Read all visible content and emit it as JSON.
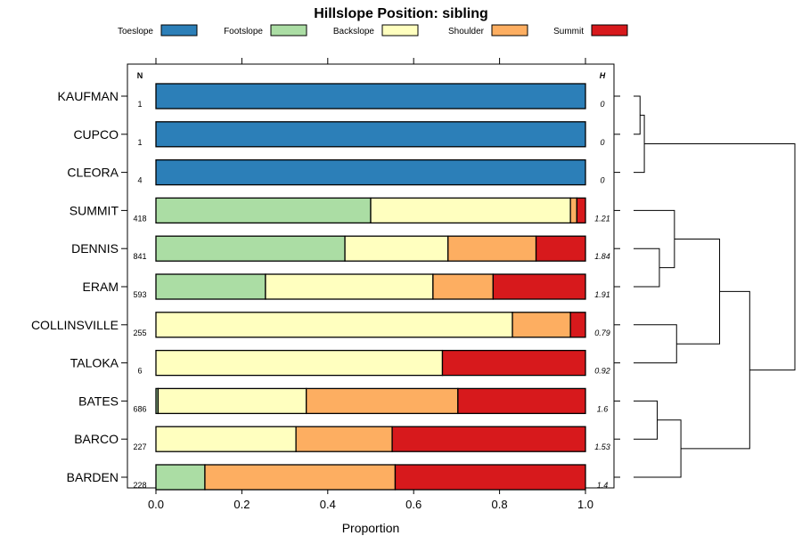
{
  "chart_data": {
    "type": "bar",
    "stacked": true,
    "orientation": "horizontal",
    "title": "Hillslope Position: sibling",
    "xlabel": "Proportion",
    "xlim": [
      0,
      1
    ],
    "xticks": [
      "0.0",
      "0.2",
      "0.4",
      "0.6",
      "0.8",
      "1.0"
    ],
    "legend_position": "top",
    "n_header": "N",
    "h_header": "H",
    "series": [
      {
        "name": "Toeslope",
        "color": "#2c7fb8"
      },
      {
        "name": "Footslope",
        "color": "#abdda4"
      },
      {
        "name": "Backslope",
        "color": "#ffffbf"
      },
      {
        "name": "Shoulder",
        "color": "#fdae61"
      },
      {
        "name": "Summit",
        "color": "#d7191c"
      }
    ],
    "categories": [
      "KAUFMAN",
      "CUPCO",
      "CLEORA",
      "SUMMIT",
      "DENNIS",
      "ERAM",
      "COLLINSVILLE",
      "TALOKA",
      "BATES",
      "BARCO",
      "BARDEN"
    ],
    "n": [
      "1",
      "1",
      "4",
      "418",
      "841",
      "593",
      "255",
      "6",
      "686",
      "227",
      "228"
    ],
    "h": [
      "0",
      "0",
      "0",
      "1.21",
      "1.84",
      "1.91",
      "0.79",
      "0.92",
      "1.6",
      "1.53",
      "1.4"
    ],
    "values": [
      [
        1.0,
        0.0,
        0.0,
        0.0,
        0.0
      ],
      [
        1.0,
        0.0,
        0.0,
        0.0,
        0.0
      ],
      [
        1.0,
        0.0,
        0.0,
        0.0,
        0.0
      ],
      [
        0.0,
        0.5,
        0.465,
        0.015,
        0.02
      ],
      [
        0.0,
        0.44,
        0.24,
        0.205,
        0.115
      ],
      [
        0.0,
        0.255,
        0.39,
        0.14,
        0.215
      ],
      [
        0.0,
        0.0,
        0.83,
        0.135,
        0.035
      ],
      [
        0.0,
        0.0,
        0.667,
        0.0,
        0.333
      ],
      [
        0.0,
        0.005,
        0.345,
        0.353,
        0.297
      ],
      [
        0.0,
        0.0,
        0.326,
        0.224,
        0.45
      ],
      [
        0.0,
        0.114,
        0.0,
        0.443,
        0.443
      ]
    ],
    "dendrogram": {
      "merges": [
        {
          "left": "KAUFMAN",
          "right": "CUPCO",
          "height": 0.03
        },
        {
          "left": "m0",
          "right": "CLEORA",
          "height": 0.05
        },
        {
          "left": "DENNIS",
          "right": "ERAM",
          "height": 0.12
        },
        {
          "left": "SUMMIT",
          "right": "m2",
          "height": 0.19
        },
        {
          "left": "COLLINSVILLE",
          "right": "TALOKA",
          "height": 0.2
        },
        {
          "left": "m3",
          "right": "m4",
          "height": 0.4
        },
        {
          "left": "BATES",
          "right": "BARCO",
          "height": 0.11
        },
        {
          "left": "m6",
          "right": "BARDEN",
          "height": 0.22
        },
        {
          "left": "m5",
          "right": "m7",
          "height": 0.54
        },
        {
          "left": "m1",
          "right": "m8",
          "height": 0.75
        }
      ]
    }
  }
}
